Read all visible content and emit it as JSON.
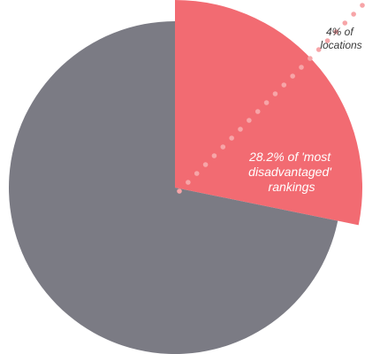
{
  "chart_data": {
    "type": "pie",
    "series": [
      {
        "values": [
          28.2,
          71.8
        ],
        "colors": [
          "#f26b72",
          "#7b7b84"
        ]
      }
    ],
    "annotations": [
      {
        "lines": [
          "28.2% of 'most",
          "disadvantaged'",
          "rankings"
        ]
      },
      {
        "lines": [
          "4% of",
          "locations"
        ]
      }
    ],
    "dotted_line": true,
    "dot_color": "#f7a5a8"
  }
}
